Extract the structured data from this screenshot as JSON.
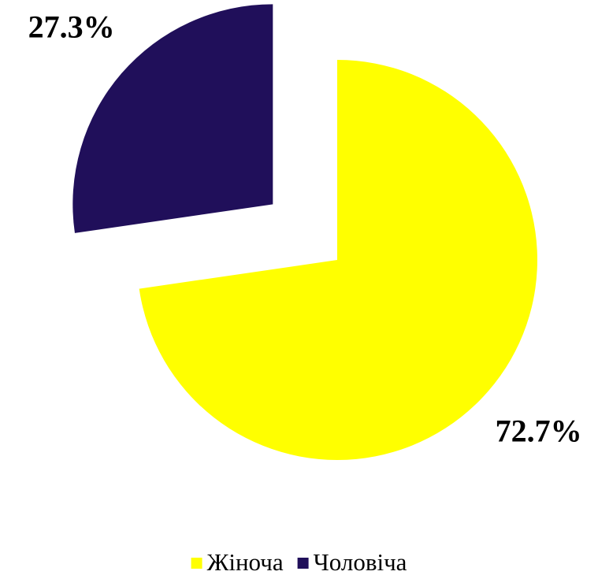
{
  "chart_data": {
    "type": "pie",
    "categories": [
      "Жіноча",
      "Чоловіча"
    ],
    "values": [
      72.7,
      27.3
    ],
    "value_labels": [
      "72.7%",
      "27.3%"
    ],
    "colors": [
      "#ffff00",
      "#200f5a"
    ],
    "legend": "bottom"
  }
}
